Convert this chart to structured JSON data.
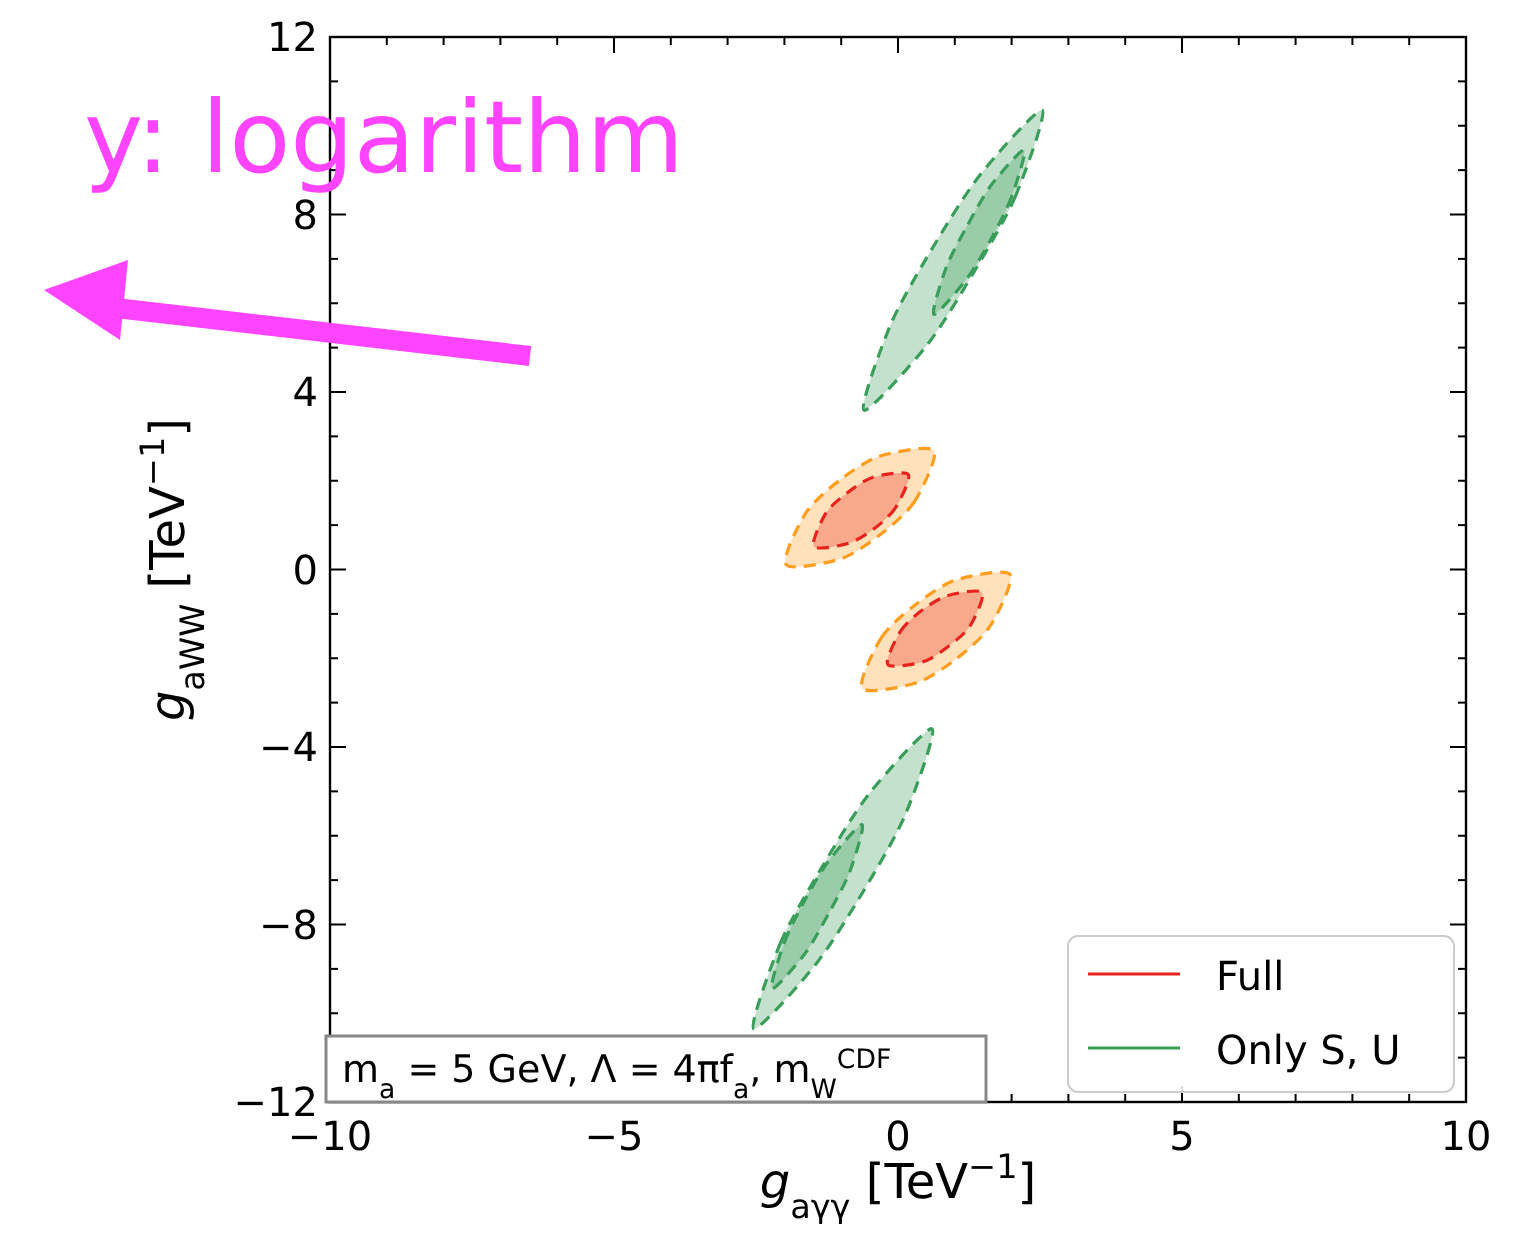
{
  "chart_data": {
    "type": "area",
    "xlabel": "g$_{aγγ}$ [TeV$^{−1}$]",
    "ylabel": "g$_{aWW}$ [TeV$^{−1}$]",
    "xlim": [
      -10,
      10
    ],
    "ylim": [
      -12,
      12
    ],
    "xticks": [
      {
        "value": -10,
        "label": "−10"
      },
      {
        "value": -9,
        "label": null
      },
      {
        "value": -8,
        "label": null
      },
      {
        "value": -7,
        "label": null
      },
      {
        "value": -6,
        "label": null
      },
      {
        "value": -5,
        "label": "−5"
      },
      {
        "value": -4,
        "label": null
      },
      {
        "value": -3,
        "label": null
      },
      {
        "value": -2,
        "label": null
      },
      {
        "value": -1,
        "label": null
      },
      0,
      {
        "value": 1,
        "label": null
      },
      {
        "value": 2,
        "label": null
      },
      {
        "value": 3,
        "label": null
      },
      {
        "value": 4,
        "label": null
      },
      5,
      {
        "value": 6,
        "label": null
      },
      {
        "value": 7,
        "label": null
      },
      {
        "value": 8,
        "label": null
      },
      {
        "value": 9,
        "label": null
      },
      10
    ],
    "yticks": [
      {
        "value": -12,
        "label": "−12"
      },
      {
        "value": -11,
        "label": null
      },
      {
        "value": -10,
        "label": null
      },
      {
        "value": -9,
        "label": null
      },
      {
        "value": -8,
        "label": "−8"
      },
      {
        "value": -7,
        "label": null
      },
      {
        "value": -6,
        "label": null
      },
      {
        "value": -5,
        "label": null
      },
      {
        "value": -4,
        "label": "−4"
      },
      {
        "value": -3,
        "label": null
      },
      {
        "value": -2,
        "label": null
      },
      {
        "value": -1,
        "label": null
      },
      0,
      {
        "value": 1,
        "label": null
      },
      {
        "value": 2,
        "label": null
      },
      {
        "value": 3,
        "label": null
      },
      4,
      {
        "value": 5,
        "label": null
      },
      {
        "value": 6,
        "label": null
      },
      {
        "value": 7,
        "label": null
      },
      8,
      {
        "value": 9,
        "label": null
      },
      {
        "value": 10,
        "label": null
      },
      {
        "value": 11,
        "label": null
      },
      12
    ],
    "grid": false,
    "legend": "bottom right",
    "line_style": "dashed",
    "annotations": [
      "m$_{a}$ = 5 GeV, Λ = 4πf$_{a}$, m$_{W}$$^{CDF}$",
      "y: logarithm"
    ],
    "series": [
      {
        "color": "#ff9d1e",
        "x": [
          0.63,
          0.29,
          -0.3,
          -1.01,
          -1.97,
          -1.63,
          -1.04,
          -0.33
        ],
        "values": [
          2.68,
          1.53,
          0.8,
          0.24,
          0.11,
          1.26,
          2.0,
          2.55
        ]
      },
      {
        "color": "#ff9d1e",
        "x": [
          -0.63,
          -0.29,
          0.3,
          1.01,
          1.97,
          1.63,
          1.04,
          0.33
        ],
        "values": [
          -2.68,
          -1.53,
          -0.8,
          -0.24,
          -0.11,
          -1.26,
          -2.0,
          -2.55
        ]
      },
      {
        "name": "Full",
        "color": "#e8231e",
        "x": [
          0.18,
          -0.04,
          -0.41,
          -0.87,
          -1.48,
          -1.27,
          -0.89,
          -0.44
        ],
        "values": [
          2.14,
          1.4,
          0.93,
          0.59,
          0.52,
          1.27,
          1.73,
          2.08
        ]
      },
      {
        "color": "#e8231e",
        "x": [
          -0.18,
          0.04,
          0.41,
          0.87,
          1.48,
          1.27,
          0.89,
          0.44
        ],
        "values": [
          -2.14,
          -1.4,
          -0.93,
          -0.59,
          -0.52,
          -1.27,
          -1.73,
          -2.08
        ]
      },
      {
        "color": "#3a9d5a",
        "x": [
          2.54,
          2.07,
          1.33,
          0.5,
          -0.6,
          -0.13,
          0.61,
          1.45
        ],
        "values": [
          10.35,
          8.42,
          6.69,
          5.04,
          3.59,
          5.52,
          7.25,
          8.9
        ]
      },
      {
        "color": "#3a9d5a",
        "x": [
          -2.54,
          -2.07,
          -1.33,
          -0.5,
          0.6,
          0.13,
          -0.61,
          -1.45
        ],
        "values": [
          -10.35,
          -8.42,
          -6.69,
          -5.04,
          -3.59,
          -5.52,
          -7.25,
          -8.9
        ]
      },
      {
        "name": "Only S, U",
        "color": "#3a9d5a",
        "x": [
          2.22,
          2.0,
          1.64,
          1.21,
          0.63,
          0.85,
          1.22,
          1.64
        ],
        "values": [
          9.45,
          8.4,
          7.45,
          6.55,
          5.75,
          6.81,
          7.75,
          8.66
        ]
      },
      {
        "color": "#3a9d5a",
        "x": [
          -2.22,
          -2.0,
          -1.64,
          -1.21,
          -0.63,
          -0.85,
          -1.22,
          -1.64
        ],
        "values": [
          -9.45,
          -8.4,
          -7.45,
          -6.55,
          -5.75,
          -6.81,
          -7.75,
          -8.66
        ]
      }
    ]
  }
}
